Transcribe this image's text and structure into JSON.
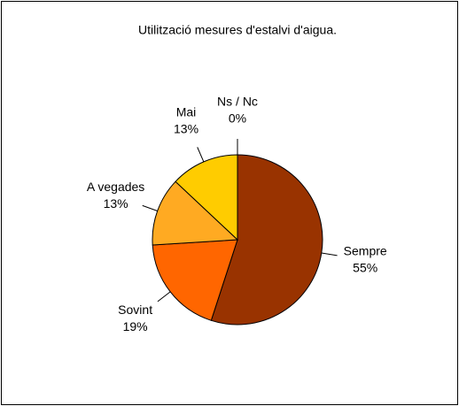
{
  "chart_data": {
    "type": "pie",
    "title": "Utilització mesures d'estalvi d'aigua.",
    "categories": [
      "Sempre",
      "Sovint",
      "A vegades",
      "Mai",
      "Ns / Nc"
    ],
    "values": [
      55,
      19,
      13,
      13,
      0
    ],
    "value_labels": [
      "55%",
      "19%",
      "13%",
      "13%",
      "0%"
    ],
    "colors": [
      "#993300",
      "#ff6600",
      "#ffaa22",
      "#ffcc00",
      "#ffff99"
    ]
  }
}
